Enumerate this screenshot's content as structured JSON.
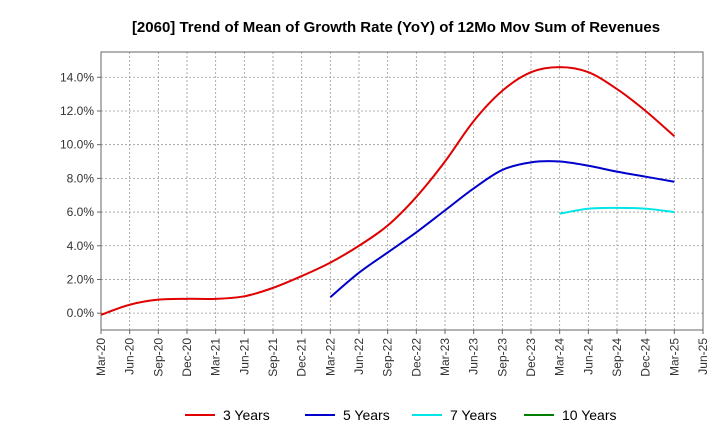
{
  "chart_data": {
    "type": "line",
    "title": "[2060]  Trend of Mean of Growth Rate (YoY) of 12Mo Mov Sum of Revenues",
    "xlabel": "",
    "ylabel": "",
    "x_ticks": [
      "Mar-20",
      "Jun-20",
      "Sep-20",
      "Dec-20",
      "Mar-21",
      "Jun-21",
      "Sep-21",
      "Dec-21",
      "Mar-22",
      "Jun-22",
      "Sep-22",
      "Dec-22",
      "Mar-23",
      "Jun-23",
      "Sep-23",
      "Dec-23",
      "Mar-24",
      "Jun-24",
      "Sep-24",
      "Dec-24",
      "Mar-25",
      "Jun-25"
    ],
    "y_ticks": [
      "0.0%",
      "2.0%",
      "4.0%",
      "6.0%",
      "8.0%",
      "10.0%",
      "12.0%",
      "14.0%"
    ],
    "ylim": [
      -1.0,
      15.5
    ],
    "grid": true,
    "legend_position": "bottom",
    "series": [
      {
        "name": "3 Years",
        "color": "#e00000",
        "x": [
          "Mar-20",
          "Jun-20",
          "Sep-20",
          "Dec-20",
          "Mar-21",
          "Jun-21",
          "Sep-21",
          "Dec-21",
          "Mar-22",
          "Jun-22",
          "Sep-22",
          "Dec-22",
          "Mar-23",
          "Jun-23",
          "Sep-23",
          "Dec-23",
          "Mar-24",
          "Jun-24",
          "Sep-24",
          "Dec-24",
          "Mar-25"
        ],
        "values": [
          -0.1,
          0.5,
          0.8,
          0.85,
          0.85,
          1.0,
          1.5,
          2.2,
          3.0,
          4.0,
          5.2,
          6.9,
          9.0,
          11.4,
          13.2,
          14.3,
          14.6,
          14.3,
          13.3,
          12.0,
          10.5
        ]
      },
      {
        "name": "5 Years",
        "color": "#0000cc",
        "x": [
          "Mar-22",
          "Jun-22",
          "Sep-22",
          "Dec-22",
          "Mar-23",
          "Jun-23",
          "Sep-23",
          "Dec-23",
          "Mar-24",
          "Jun-24",
          "Sep-24",
          "Dec-24",
          "Mar-25"
        ],
        "values": [
          0.95,
          2.4,
          3.6,
          4.8,
          6.1,
          7.4,
          8.5,
          8.95,
          9.0,
          8.75,
          8.4,
          8.1,
          7.8
        ]
      },
      {
        "name": "7 Years",
        "color": "#00e5e5",
        "x": [
          "Mar-24",
          "Jun-24",
          "Sep-24",
          "Dec-24",
          "Mar-25"
        ],
        "values": [
          5.9,
          6.2,
          6.25,
          6.2,
          6.0
        ]
      },
      {
        "name": "10 Years",
        "color": "#008000",
        "x": [],
        "values": []
      }
    ]
  }
}
